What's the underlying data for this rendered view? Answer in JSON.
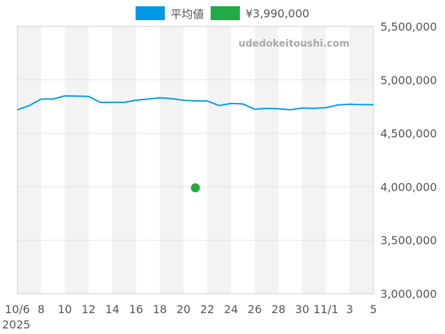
{
  "watermark": "udedokeitoushi.com",
  "legend": [
    {
      "label": "平均値",
      "color": "#0099e6"
    },
    {
      "label": "¥3,990,000",
      "color": "#22aa44"
    }
  ],
  "chart_data": {
    "type": "line",
    "x_ticks": [
      "10/6",
      "8",
      "10",
      "12",
      "14",
      "16",
      "18",
      "20",
      "22",
      "24",
      "26",
      "28",
      "30",
      "11/1",
      "3",
      "5"
    ],
    "x_year_label": "2025",
    "x_range": [
      0,
      30
    ],
    "y_ticks": [
      "3,000,000",
      "3,500,000",
      "4,000,000",
      "4,500,000",
      "5,000,000",
      "5,500,000"
    ],
    "ylim": [
      3000000,
      5500000
    ],
    "grid": true,
    "legend_position": "top",
    "series": [
      {
        "name": "平均値",
        "type": "line",
        "color": "#0099e6",
        "x": [
          0,
          1,
          2,
          3,
          4,
          5,
          6,
          7,
          8,
          9,
          10,
          11,
          12,
          13,
          14,
          15,
          16,
          17,
          18,
          19,
          20,
          21,
          22,
          23,
          24,
          25,
          26,
          27,
          28,
          29,
          30
        ],
        "values": [
          4720000,
          4760000,
          4820000,
          4820000,
          4850000,
          4848000,
          4845000,
          4790000,
          4790000,
          4790000,
          4810000,
          4820000,
          4833000,
          4825000,
          4810000,
          4803000,
          4803000,
          4760000,
          4780000,
          4775000,
          4725000,
          4733000,
          4730000,
          4720000,
          4737000,
          4733000,
          4740000,
          4765000,
          4772000,
          4768000,
          4768000
        ]
      },
      {
        "name": "¥3,990,000",
        "type": "scatter",
        "color": "#22aa44",
        "x": [
          15
        ],
        "values": [
          3990000
        ]
      }
    ]
  }
}
